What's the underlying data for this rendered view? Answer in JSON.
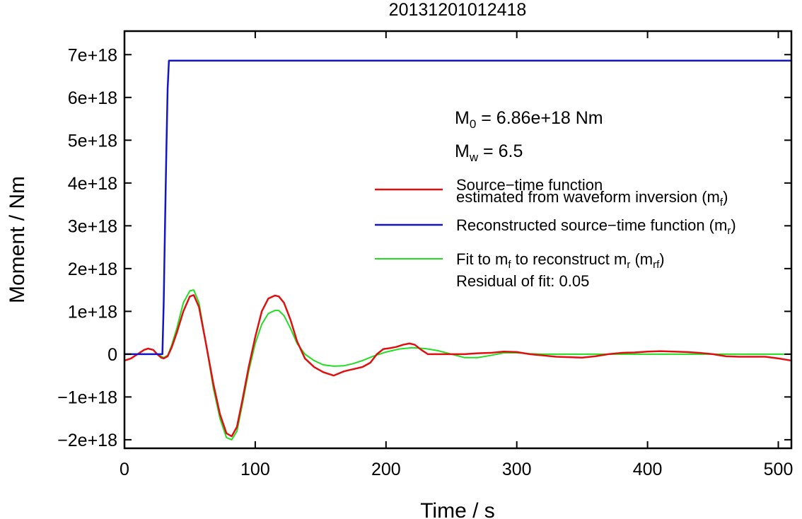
{
  "chart_data": {
    "type": "line",
    "title": "20131201012418",
    "xlabel": "Time / s",
    "ylabel": "Moment / Nm",
    "xlim": [
      0,
      510
    ],
    "ylim": [
      -2.2e+18,
      7.55e+18
    ],
    "x_ticks": [
      0,
      100,
      200,
      300,
      400,
      500
    ],
    "x_tick_labels": [
      "0",
      "100",
      "200",
      "300",
      "400",
      "500"
    ],
    "y_ticks": [
      -2e+18,
      -1e+18,
      0,
      1e+18,
      2e+18,
      3e+18,
      4e+18,
      5e+18,
      6e+18,
      7e+18
    ],
    "y_tick_labels": [
      "−2e+18",
      "−1e+18",
      "0",
      "1e+18",
      "2e+18",
      "3e+18",
      "4e+18",
      "5e+18",
      "6e+18",
      "7e+18"
    ],
    "grid": false,
    "legend_position": "right",
    "annotations": {
      "m0": {
        "base": "M",
        "sub": "0",
        "text": " = 6.86e+18 Nm"
      },
      "mw": {
        "base": "M",
        "sub": "w",
        "text": " = 6.5"
      },
      "residual": "Residual of fit: 0.05"
    },
    "legend": [
      {
        "series": "mf",
        "color": "#e01010",
        "line1": "Source−time function",
        "line2_pre": "estimated from waveform inversion (m",
        "line2_sub": "f",
        "line2_post": ")"
      },
      {
        "series": "mr",
        "color": "#1414c8",
        "line1_pre": "Reconstructed source−time function (m",
        "line1_sub": "r",
        "line1_post": ")"
      },
      {
        "series": "mrf",
        "color": "#22dd22",
        "line1_pre": "Fit to m",
        "line1_sub1": "f",
        "line1_mid": " to reconstruct m",
        "line1_sub2": "r",
        "line1_mid2": " (m",
        "line1_sub3": "rf",
        "line1_post": ")"
      }
    ],
    "series": [
      {
        "key": "mf",
        "color": "#e01010",
        "x": [
          0,
          5,
          10,
          15,
          18,
          22,
          25,
          28,
          30,
          33,
          36,
          40,
          45,
          50,
          53,
          57,
          62,
          68,
          73,
          78,
          82,
          86,
          90,
          95,
          100,
          105,
          110,
          115,
          118,
          122,
          127,
          132,
          138,
          145,
          152,
          160,
          168,
          175,
          182,
          188,
          193,
          198,
          203,
          208,
          213,
          218,
          222,
          227,
          232,
          240,
          250,
          260,
          270,
          280,
          290,
          300,
          310,
          320,
          330,
          340,
          350,
          360,
          370,
          380,
          390,
          400,
          410,
          420,
          430,
          440,
          450,
          460,
          470,
          480,
          490,
          500,
          510
        ],
        "y": [
          -1.5e+17,
          -1e+17,
          0,
          1e+17,
          1.3e+17,
          1e+17,
          0,
          -8e+16,
          -1e+17,
          -5e+16,
          1.5e+17,
          5e+17,
          1e+18,
          1.35e+18,
          1.38e+18,
          1.1e+18,
          3e+17,
          -7e+17,
          -1.4e+18,
          -1.85e+18,
          -1.92e+18,
          -1.7e+18,
          -1.1e+18,
          -3e+17,
          4e+17,
          1e+18,
          1.3e+18,
          1.37e+18,
          1.35e+18,
          1.2e+18,
          8e+17,
          3e+17,
          -1e+17,
          -3e+17,
          -4.2e+17,
          -5e+17,
          -4e+17,
          -3.5e+17,
          -3e+17,
          -2e+17,
          0,
          1.2e+17,
          1.4e+17,
          1.7e+17,
          2.2e+17,
          2.5e+17,
          2.2e+17,
          1e+17,
          0,
          0,
          0,
          0,
          2e+16,
          3e+16,
          6e+16,
          5e+16,
          0,
          -3e+16,
          -6e+16,
          -7e+16,
          -8e+16,
          -5e+16,
          0,
          3e+16,
          4e+16,
          6e+16,
          7e+16,
          6e+16,
          5e+16,
          3e+16,
          0,
          -5e+16,
          -6e+16,
          -6e+16,
          -6e+16,
          -1e+17,
          -1.5e+17
        ]
      },
      {
        "key": "mr",
        "color": "#1414c8",
        "x": [
          0,
          29,
          30,
          31,
          32,
          33,
          34,
          510
        ],
        "y": [
          0,
          0,
          1.2e+18,
          3e+18,
          4.7e+18,
          6.2e+18,
          6.86e+18,
          6.86e+18
        ]
      },
      {
        "key": "mrf",
        "color": "#22dd22",
        "x": [
          0,
          25,
          28,
          30,
          33,
          36,
          40,
          45,
          50,
          53,
          57,
          62,
          68,
          73,
          78,
          82,
          86,
          90,
          95,
          100,
          105,
          110,
          115,
          118,
          122,
          127,
          132,
          138,
          145,
          152,
          160,
          168,
          175,
          182,
          190,
          200,
          210,
          220,
          230,
          240,
          250,
          260,
          270,
          280,
          290,
          300,
          310,
          320,
          340,
          360,
          380,
          400,
          420,
          440,
          460,
          480,
          500,
          510
        ],
        "y": [
          0,
          0,
          -5e+16,
          -8e+16,
          -3e+16,
          2e+17,
          6e+17,
          1.2e+18,
          1.48e+18,
          1.5e+18,
          1.2e+18,
          3e+17,
          -8e+17,
          -1.5e+18,
          -1.95e+18,
          -2e+18,
          -1.8e+18,
          -1.2e+18,
          -4e+17,
          2.5e+17,
          7e+17,
          9.5e+17,
          1.02e+18,
          1.02e+18,
          9e+17,
          6e+17,
          2.5e+17,
          0,
          -1.5e+17,
          -2.5e+17,
          -2.8e+17,
          -2.7e+17,
          -2.2e+17,
          -1.5e+17,
          -5e+16,
          5e+16,
          1.2e+17,
          1.5e+17,
          1.3e+17,
          8e+16,
          0,
          -8e+16,
          -8e+16,
          -3e+16,
          3e+16,
          3e+16,
          1e+16,
          0,
          0,
          0,
          0,
          0,
          0,
          0,
          0,
          0,
          0,
          0
        ]
      }
    ]
  }
}
